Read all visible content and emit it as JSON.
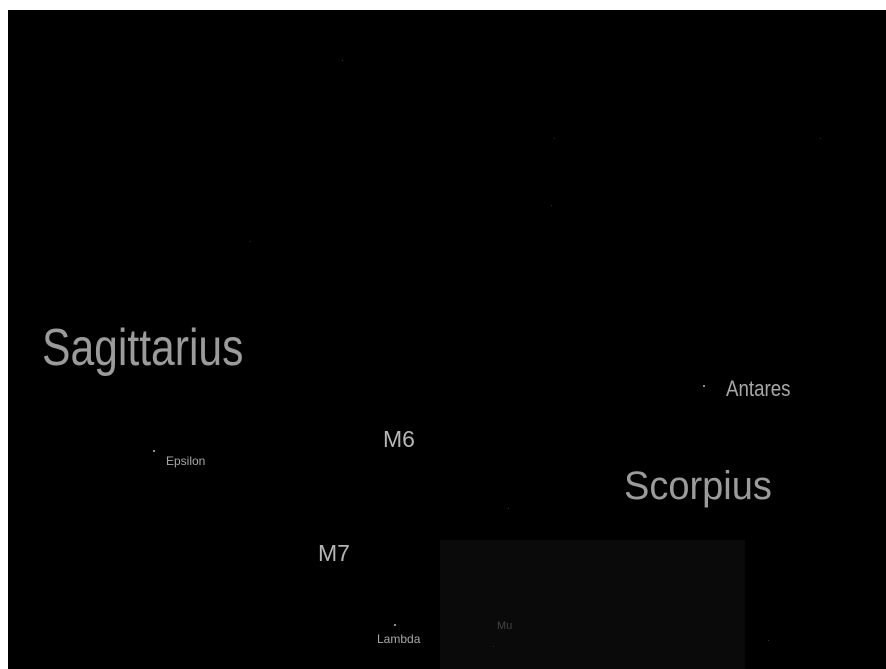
{
  "constellations": [
    {
      "label": "Sagittarius"
    },
    {
      "label": "Scorpius"
    }
  ],
  "stars": [
    {
      "label": "Antares"
    },
    {
      "label": "Epsilon"
    },
    {
      "label": "Lambda"
    },
    {
      "label": "Mu"
    }
  ],
  "deep_sky_objects": [
    {
      "label": "M6"
    },
    {
      "label": "M7"
    }
  ]
}
